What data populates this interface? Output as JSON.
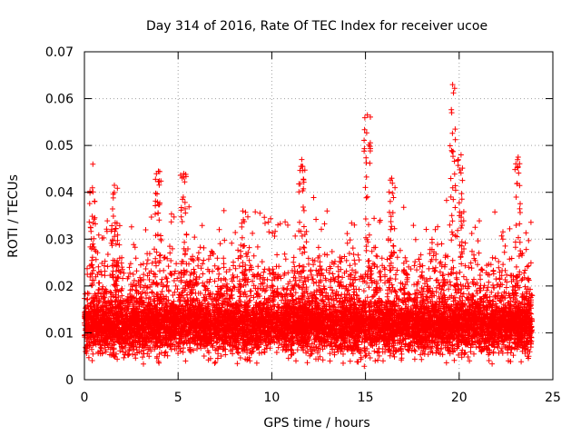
{
  "chart_data": {
    "type": "scatter",
    "title": "Day 314 of 2016, Rate Of TEC Index for receiver ucoe",
    "xlabel": "GPS time / hours",
    "ylabel": "ROTI / TECUs",
    "xlim": [
      0,
      25
    ],
    "ylim": [
      0,
      0.07
    ],
    "xticks": [
      "0",
      "5",
      "10",
      "15",
      "20",
      "25"
    ],
    "yticks": [
      "0",
      "0.01",
      "0.02",
      "0.03",
      "0.04",
      "0.05",
      "0.06",
      "0.07"
    ],
    "grid": true,
    "marker": "plus",
    "color": "#ff0000",
    "point_count": 9000,
    "x_range_data": [
      0,
      23.9
    ],
    "baseline_mean": 0.0115,
    "peaks": [
      {
        "x": 0.45,
        "y": 0.046
      },
      {
        "x": 1.6,
        "y": 0.0415
      },
      {
        "x": 3.95,
        "y": 0.0445
      },
      {
        "x": 5.3,
        "y": 0.044
      },
      {
        "x": 8.45,
        "y": 0.036
      },
      {
        "x": 11.6,
        "y": 0.047
      },
      {
        "x": 15.1,
        "y": 0.0565
      },
      {
        "x": 16.4,
        "y": 0.043
      },
      {
        "x": 19.65,
        "y": 0.063
      },
      {
        "x": 20.1,
        "y": 0.048
      },
      {
        "x": 23.15,
        "y": 0.0475
      }
    ]
  }
}
